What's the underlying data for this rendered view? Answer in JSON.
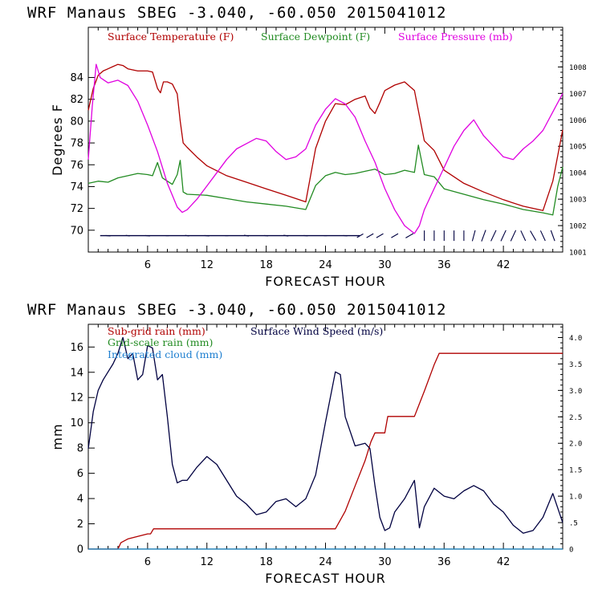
{
  "chart_data": [
    {
      "type": "line",
      "title": "WRF   Manaus SBEG   -3.040, -60.050  2015041012",
      "xlabel": "FORECAST HOUR",
      "ylabel": "Degrees F",
      "xlim": [
        0,
        48
      ],
      "ylim": [
        68,
        88.6
      ],
      "y2lim": [
        1001,
        1009.5
      ],
      "x_ticks": [
        6,
        12,
        18,
        24,
        30,
        36,
        42
      ],
      "x_tick_labels": [
        "6",
        "12",
        "18",
        "24",
        "30",
        "36",
        "42"
      ],
      "y_ticks": [
        70,
        72,
        74,
        76,
        78,
        80,
        82,
        84
      ],
      "y_tick_labels": [
        "70",
        "72",
        "74",
        "76",
        "78",
        "80",
        "82",
        "84"
      ],
      "y2_ticks": [
        1001,
        1002,
        1003,
        1004,
        1005,
        1006,
        1007,
        1008
      ],
      "y2_tick_labels": [
        "1001",
        "1002",
        "1003",
        "1004",
        "1005",
        "1006",
        "1007",
        "1008"
      ],
      "legend_position": "top",
      "colors": {
        "temperature": "#b00000",
        "dewpoint": "#228b22",
        "pressure": "#e000e0",
        "wind": "#000040"
      },
      "series": [
        {
          "name": "Surface Temperature (F)",
          "axis": "left",
          "color": "#b00000",
          "x": [
            0,
            0.5,
            1,
            1.5,
            2,
            2.5,
            3,
            3.5,
            4,
            5,
            6,
            6.5,
            7,
            7.3,
            7.6,
            8,
            8.5,
            9,
            9.3,
            9.6,
            10,
            11,
            12,
            14,
            16,
            18,
            20,
            22,
            23,
            24,
            25,
            26,
            27,
            28,
            28.5,
            29,
            29.5,
            30,
            31,
            32,
            33,
            34,
            35,
            36,
            38,
            40,
            42,
            44,
            46,
            47,
            48
          ],
          "y": [
            81,
            83,
            84.2,
            84.6,
            84.8,
            85,
            85.2,
            85.1,
            84.8,
            84.6,
            84.6,
            84.5,
            83,
            82.6,
            83.6,
            83.6,
            83.4,
            82.5,
            80,
            78,
            77.6,
            76.7,
            75.9,
            75,
            74.4,
            73.8,
            73.2,
            72.6,
            77.5,
            80,
            81.6,
            81.5,
            82,
            82.3,
            81.2,
            80.7,
            81.7,
            82.8,
            83.3,
            83.6,
            82.8,
            78.2,
            77.3,
            75.5,
            74.3,
            73.5,
            72.8,
            72.2,
            71.8,
            74.5,
            79.2
          ]
        },
        {
          "name": "Surface Dewpoint (F)",
          "axis": "left",
          "color": "#228b22",
          "x": [
            0,
            1,
            2,
            3,
            4,
            5,
            6,
            6.5,
            7,
            7.5,
            8,
            8.5,
            9,
            9.3,
            9.6,
            10,
            12,
            14,
            16,
            18,
            20,
            22,
            23,
            24,
            25,
            26,
            27,
            28,
            29,
            30,
            31,
            32,
            33,
            33.4,
            34,
            35,
            36,
            38,
            40,
            42,
            44,
            46,
            47,
            47.5,
            48
          ],
          "y": [
            74.3,
            74.5,
            74.4,
            74.8,
            75,
            75.2,
            75.1,
            75,
            76.2,
            74.8,
            74.5,
            74.2,
            75.1,
            76.4,
            73.5,
            73.3,
            73.2,
            72.9,
            72.6,
            72.4,
            72.2,
            71.9,
            74.1,
            75,
            75.3,
            75.1,
            75.2,
            75.4,
            75.6,
            75.1,
            75.2,
            75.5,
            75.3,
            77.8,
            75.1,
            74.9,
            73.8,
            73.3,
            72.8,
            72.4,
            71.9,
            71.6,
            71.4,
            74,
            75.8
          ]
        },
        {
          "name": "Surface Pressure (mb)",
          "axis": "right",
          "color": "#e000e0",
          "x": [
            0,
            0.4,
            0.8,
            1.2,
            1.6,
            2,
            3,
            4,
            5,
            6,
            7,
            8,
            9,
            9.5,
            10,
            11,
            12,
            13,
            14,
            15,
            16,
            17,
            18,
            19,
            20,
            21,
            22,
            23,
            24,
            25,
            26,
            27,
            28,
            29,
            30,
            31,
            32,
            33,
            33.5,
            34,
            35,
            36,
            37,
            38,
            39,
            40,
            41,
            42,
            43,
            44,
            45,
            46,
            47,
            48
          ],
          "y": [
            1004.5,
            1006.5,
            1008.1,
            1007.6,
            1007.5,
            1007.4,
            1007.5,
            1007.3,
            1006.7,
            1005.8,
            1004.8,
            1003.6,
            1002.7,
            1002.5,
            1002.6,
            1003.0,
            1003.5,
            1004.0,
            1004.5,
            1004.9,
            1005.1,
            1005.3,
            1005.2,
            1004.8,
            1004.5,
            1004.6,
            1004.9,
            1005.8,
            1006.4,
            1006.8,
            1006.6,
            1006.1,
            1005.2,
            1004.4,
            1003.4,
            1002.6,
            1002.0,
            1001.7,
            1002.0,
            1002.6,
            1003.4,
            1004.2,
            1005.0,
            1005.6,
            1006.0,
            1005.4,
            1005.0,
            1004.6,
            1004.5,
            1004.9,
            1005.2,
            1005.6,
            1006.3,
            1007.0
          ]
        }
      ],
      "wind_barbs": {
        "name": "Surface Wind (barbs)",
        "color": "#000040",
        "baseline_y": 69.5,
        "x": [
          2,
          4,
          6,
          8,
          10,
          12,
          14,
          16,
          18,
          20,
          22,
          24,
          26,
          27.5,
          28.5,
          29.5,
          31,
          32.5,
          34,
          35,
          36,
          37,
          38,
          39,
          40,
          41,
          42,
          43,
          44,
          45,
          46,
          47
        ],
        "direction_deg": [
          95,
          100,
          95,
          90,
          100,
          95,
          90,
          100,
          95,
          100,
          95,
          90,
          95,
          60,
          60,
          60,
          60,
          60,
          0,
          0,
          0,
          0,
          0,
          15,
          20,
          25,
          25,
          25,
          335,
          330,
          335,
          340
        ],
        "length": [
          6,
          5,
          6,
          4,
          5,
          6,
          4,
          6,
          5,
          6,
          5,
          4,
          5,
          9,
          10,
          10,
          10,
          11,
          13,
          13,
          13,
          13,
          13,
          14,
          15,
          15,
          15,
          15,
          14,
          14,
          14,
          14
        ]
      }
    },
    {
      "type": "line",
      "title": "WRF   Manaus SBEG   -3.040, -60.050  2015041012",
      "xlabel": "FORECAST HOUR",
      "ylabel": "mm",
      "xlim": [
        0,
        48
      ],
      "ylim": [
        0,
        17.8
      ],
      "y2lim": [
        0,
        4.25
      ],
      "x_ticks": [
        6,
        12,
        18,
        24,
        30,
        36,
        42
      ],
      "x_tick_labels": [
        "6",
        "12",
        "18",
        "24",
        "30",
        "36",
        "42"
      ],
      "y_ticks": [
        0,
        2,
        4,
        6,
        8,
        10,
        12,
        14,
        16
      ],
      "y_tick_labels": [
        "0",
        "2",
        "4",
        "6",
        "8",
        "10",
        "12",
        "14",
        "16"
      ],
      "y2_ticks": [
        0,
        0.5,
        1.0,
        1.5,
        2.0,
        2.5,
        3.0,
        3.5,
        4.0
      ],
      "y2_tick_labels": [
        "0",
        ".5",
        "1.0",
        "1.5",
        "2.0",
        "2.5",
        "3.0",
        "3.5",
        "4.0"
      ],
      "legend_position": "top-left",
      "legend": [
        {
          "label": "Sub-grid rain (mm)",
          "color": "#b00000"
        },
        {
          "label": "Surface Wind Speed (m/s)",
          "color": "#000040"
        },
        {
          "label": "Grid-scale rain (mm)",
          "color": "#228b22"
        },
        {
          "label": "Integrated cloud (mm)",
          "color": "#1e7fd0"
        }
      ],
      "series": [
        {
          "name": "Sub-grid rain (mm)",
          "axis": "left",
          "color": "#b00000",
          "x": [
            0,
            3,
            3.3,
            4,
            5,
            6,
            6.3,
            6.6,
            7,
            10,
            14,
            18,
            22,
            25,
            25.5,
            26,
            27,
            28,
            28.6,
            29,
            30,
            30.3,
            31,
            32,
            33,
            34,
            35,
            35.5,
            36,
            40,
            44,
            48
          ],
          "y": [
            0,
            0,
            0.5,
            0.8,
            1.0,
            1.2,
            1.2,
            1.6,
            1.6,
            1.6,
            1.6,
            1.6,
            1.6,
            1.6,
            2.3,
            3.0,
            5.0,
            7.0,
            8.5,
            9.2,
            9.2,
            10.5,
            10.5,
            10.5,
            10.5,
            12.5,
            14.6,
            15.5,
            15.5,
            15.5,
            15.5,
            15.5
          ]
        },
        {
          "name": "Grid-scale rain (mm)",
          "axis": "left",
          "color": "#228b22",
          "x": [
            0,
            48
          ],
          "y": [
            0,
            0
          ]
        },
        {
          "name": "Integrated cloud (mm)",
          "axis": "left",
          "color": "#1e7fd0",
          "x": [
            0,
            48
          ],
          "y": [
            0,
            0
          ]
        },
        {
          "name": "Surface Wind Speed (m/s)",
          "axis": "right",
          "color": "#000040",
          "x": [
            0,
            0.5,
            1,
            1.5,
            2,
            2.5,
            3,
            3.5,
            4,
            4.5,
            5,
            5.5,
            6,
            6.5,
            7,
            7.5,
            8,
            8.5,
            9,
            9.5,
            10,
            11,
            12,
            13,
            14,
            15,
            16,
            17,
            18,
            19,
            20,
            21,
            22,
            23,
            24,
            25,
            25.5,
            26,
            27,
            28,
            28.5,
            29,
            29.5,
            30,
            30.5,
            31,
            32,
            33,
            33.5,
            34,
            35,
            36,
            37,
            38,
            39,
            40,
            41,
            42,
            43,
            44,
            45,
            46,
            47,
            48
          ],
          "y": [
            1.9,
            2.6,
            3.0,
            3.2,
            3.35,
            3.5,
            3.7,
            4.0,
            3.6,
            3.7,
            3.2,
            3.3,
            3.85,
            3.8,
            3.2,
            3.3,
            2.5,
            1.6,
            1.25,
            1.3,
            1.3,
            1.55,
            1.75,
            1.6,
            1.3,
            1.0,
            0.85,
            0.65,
            0.7,
            0.9,
            0.95,
            0.8,
            0.95,
            1.4,
            2.4,
            3.35,
            3.3,
            2.5,
            1.95,
            2.0,
            1.9,
            1.2,
            0.6,
            0.35,
            0.4,
            0.7,
            0.95,
            1.3,
            0.4,
            0.8,
            1.15,
            1.0,
            0.95,
            1.1,
            1.2,
            1.1,
            0.85,
            0.7,
            0.45,
            0.3,
            0.35,
            0.6,
            1.05,
            0.5
          ]
        }
      ]
    }
  ]
}
